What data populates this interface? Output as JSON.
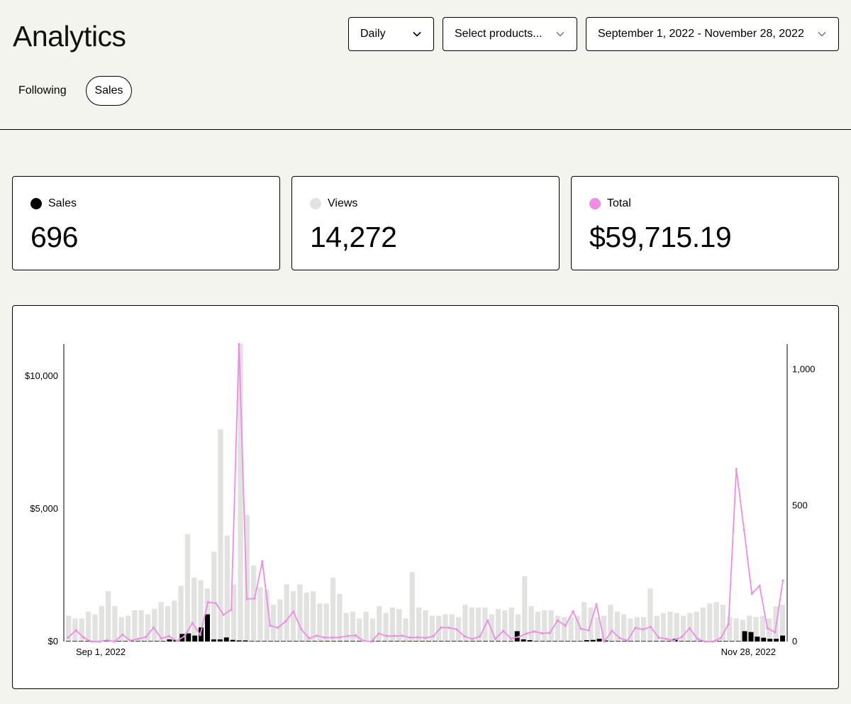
{
  "header": {
    "title": "Analytics"
  },
  "filters": {
    "period": "Daily",
    "products": "Select products...",
    "date_range": "September 1, 2022 - November 28, 2022"
  },
  "tabs": {
    "following": "Following",
    "sales": "Sales"
  },
  "stats": {
    "sales": {
      "label": "Sales",
      "value": "696",
      "color": "#000000"
    },
    "views": {
      "label": "Views",
      "value": "14,272",
      "color": "#e2e2e0"
    },
    "total": {
      "label": "Total",
      "value": "$59,715.19",
      "color": "#f08ce6"
    }
  },
  "chart_data": {
    "type": "bar",
    "x_ticks": [
      "Sep 1, 2022",
      "Nov 28, 2022"
    ],
    "y_left": {
      "ticks": [
        "$0",
        "$5,000",
        "$10,000"
      ],
      "values": [
        0,
        5000,
        10000
      ],
      "lim": [
        0,
        11200
      ]
    },
    "y_right": {
      "ticks": [
        "0",
        "500",
        "1,000"
      ],
      "values": [
        0,
        500,
        1000
      ],
      "lim": [
        0,
        1093
      ]
    },
    "series": [
      {
        "name": "Views",
        "color": "#e2e2e0",
        "axis": "right",
        "mark": "bar",
        "values": [
          95,
          85,
          85,
          110,
          100,
          130,
          185,
          130,
          90,
          95,
          115,
          115,
          100,
          120,
          145,
          130,
          150,
          205,
          395,
          235,
          225,
          195,
          330,
          780,
          390,
          210,
          1095,
          465,
          280,
          200,
          190,
          135,
          155,
          210,
          185,
          210,
          180,
          185,
          140,
          140,
          235,
          175,
          105,
          110,
          85,
          110,
          85,
          130,
          105,
          125,
          120,
          85,
          255,
          125,
          115,
          95,
          95,
          100,
          100,
          90,
          135,
          125,
          125,
          125,
          100,
          120,
          115,
          125,
          100,
          240,
          130,
          110,
          115,
          115,
          95,
          90,
          90,
          95,
          145,
          125,
          90,
          95,
          135,
          110,
          100,
          85,
          90,
          90,
          195,
          95,
          105,
          110,
          105,
          95,
          105,
          110,
          125,
          140,
          145,
          135,
          90,
          85,
          80,
          95,
          90,
          95,
          85,
          130,
          135
        ]
      },
      {
        "name": "Sales",
        "color": "#000000",
        "axis": "right",
        "mark": "bar",
        "values": [
          2,
          2,
          2,
          2,
          2,
          2,
          2,
          2,
          2,
          2,
          2,
          2,
          2,
          2,
          2,
          2,
          8,
          6,
          28,
          30,
          22,
          52,
          100,
          8,
          8,
          15,
          6,
          4,
          4,
          2,
          2,
          2,
          2,
          2,
          2,
          2,
          2,
          2,
          2,
          2,
          2,
          2,
          2,
          2,
          2,
          2,
          2,
          2,
          2,
          2,
          2,
          2,
          2,
          2,
          2,
          2,
          2,
          2,
          2,
          2,
          2,
          2,
          2,
          2,
          2,
          2,
          2,
          2,
          2,
          2,
          2,
          38,
          8,
          5,
          2,
          2,
          2,
          2,
          2,
          2,
          2,
          2,
          5,
          6,
          10,
          4,
          2,
          2,
          2,
          2,
          2,
          2,
          2,
          2,
          2,
          2,
          10,
          2,
          2,
          2,
          2,
          2,
          2,
          2,
          2,
          2,
          2,
          38,
          35,
          18,
          14,
          10,
          10,
          22
        ]
      },
      {
        "name": "Total",
        "color": "#f08ce6",
        "axis": "left",
        "mark": "line",
        "values": [
          150,
          420,
          150,
          0,
          0,
          50,
          0,
          260,
          40,
          100,
          170,
          520,
          120,
          200,
          30,
          200,
          700,
          250,
          1480,
          1450,
          1010,
          1200,
          11200,
          1600,
          1620,
          3020,
          600,
          520,
          760,
          1130,
          470,
          120,
          220,
          150,
          150,
          160,
          210,
          230,
          30,
          0,
          300,
          210,
          210,
          220,
          150,
          160,
          140,
          200,
          530,
          520,
          460,
          200,
          100,
          190,
          790,
          100,
          400,
          110,
          180,
          300,
          380,
          310,
          330,
          790,
          600,
          1140,
          480,
          420,
          1400,
          0,
          400,
          130,
          40,
          510,
          460,
          550,
          150,
          100,
          40,
          180,
          500,
          100,
          0,
          0,
          130,
          650,
          6500,
          4200,
          1800,
          2100,
          500,
          350,
          2300
        ]
      }
    ]
  }
}
